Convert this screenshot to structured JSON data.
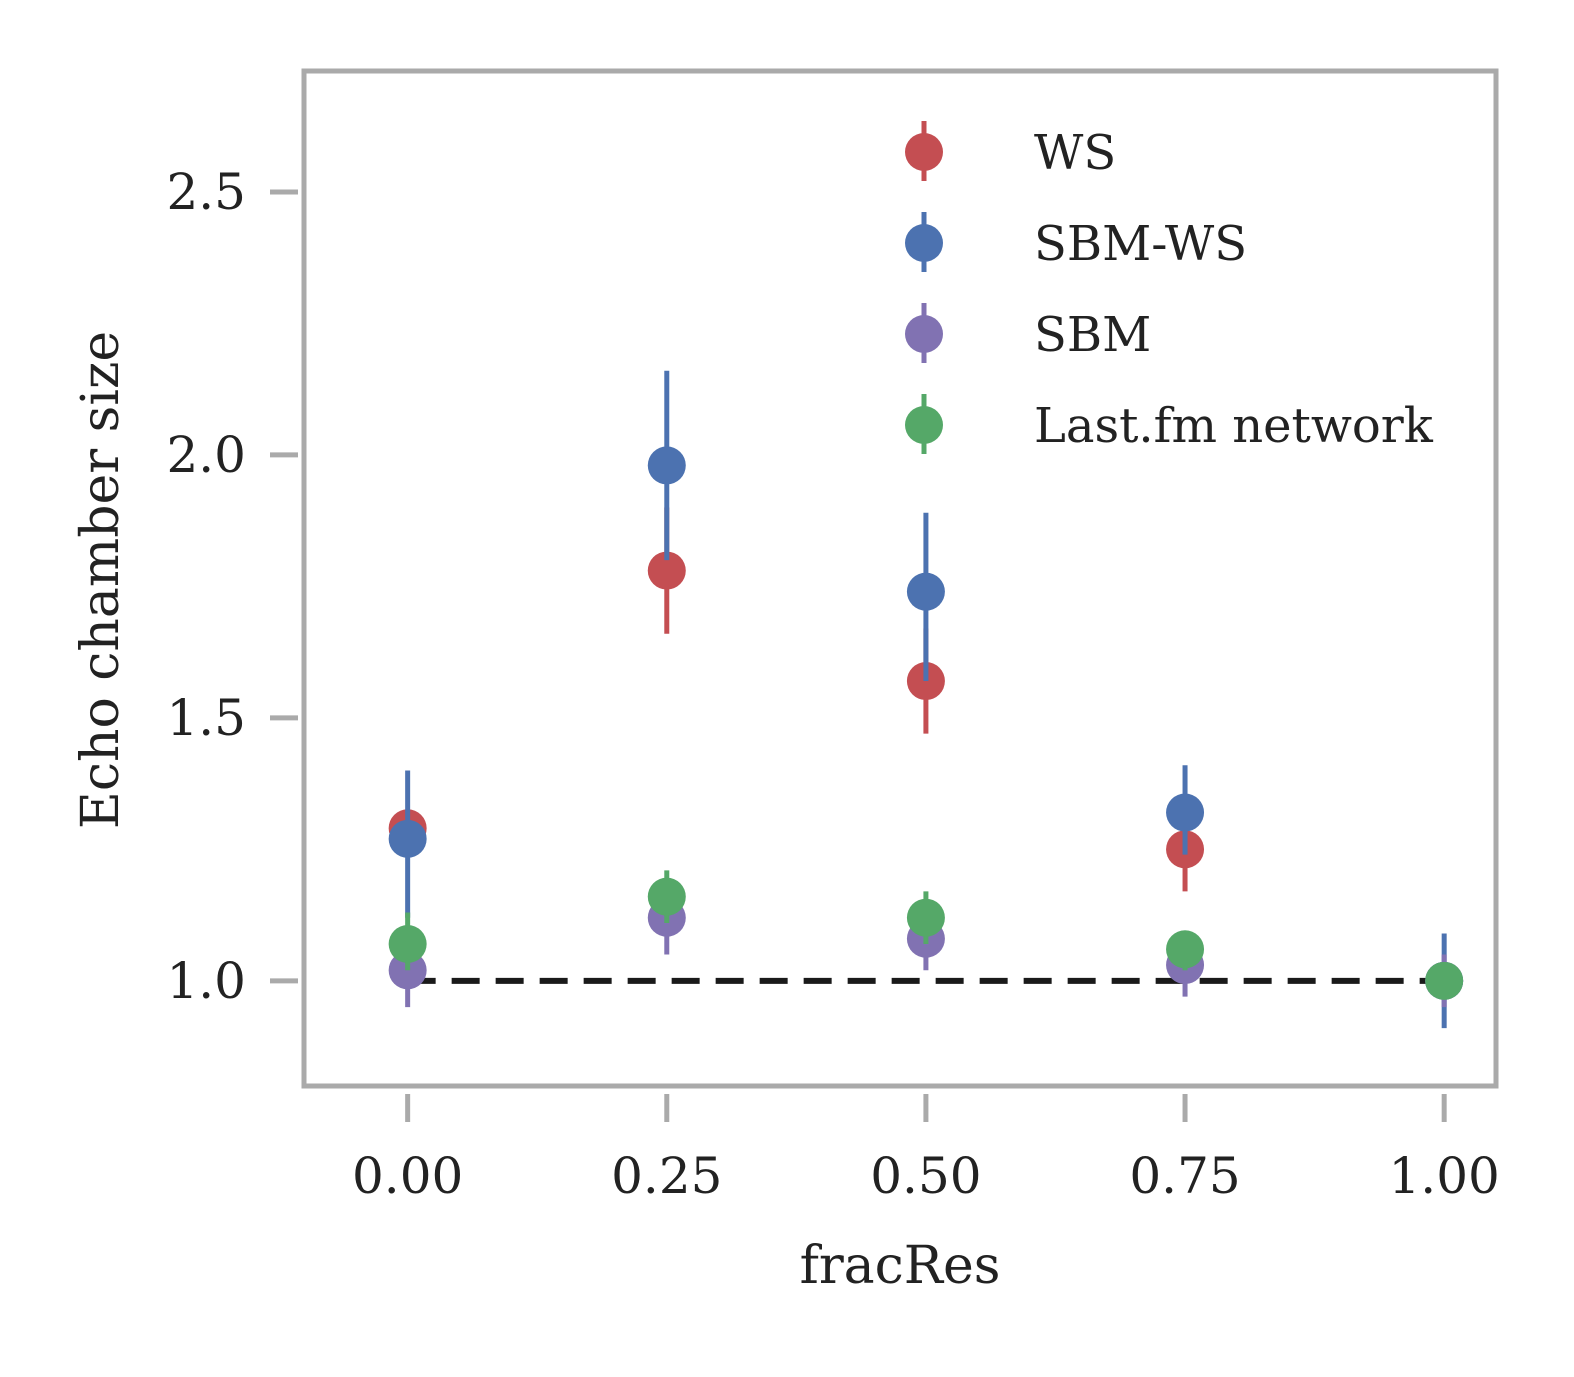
{
  "chart_data": {
    "type": "scatter",
    "title": "",
    "xlabel": "fracRes",
    "ylabel": "Echo chamber size",
    "xlim": [
      -0.1,
      1.05
    ],
    "ylim": [
      0.8,
      2.73
    ],
    "xticks": [
      0.0,
      0.25,
      0.5,
      0.75,
      1.0
    ],
    "xtick_labels": [
      "0.00",
      "0.25",
      "0.50",
      "0.75",
      "1.00"
    ],
    "yticks": [
      1.0,
      1.5,
      2.0,
      2.5
    ],
    "ytick_labels": [
      "1.0",
      "1.5",
      "2.0",
      "2.5"
    ],
    "reference_line": {
      "y": 1.0,
      "style": "dashed",
      "color": "#1a1a1a"
    },
    "legend_position": "top-right",
    "grid": false,
    "series": [
      {
        "name": "WS",
        "color": "#c44e52",
        "points": [
          {
            "x": 0.0,
            "y": 1.29,
            "err": [
              1.29,
              1.29
            ]
          },
          {
            "x": 0.25,
            "y": 1.78,
            "err": [
              1.66,
              1.9
            ]
          },
          {
            "x": 0.5,
            "y": 1.57,
            "err": [
              1.47,
              1.67
            ]
          },
          {
            "x": 0.75,
            "y": 1.25,
            "err": [
              1.17,
              1.33
            ]
          }
        ]
      },
      {
        "name": "SBM-WS",
        "color": "#4c72b0",
        "points": [
          {
            "x": 0.0,
            "y": 1.27,
            "err": [
              1.12,
              1.4
            ]
          },
          {
            "x": 0.25,
            "y": 1.98,
            "err": [
              1.8,
              2.16
            ]
          },
          {
            "x": 0.5,
            "y": 1.74,
            "err": [
              1.57,
              1.89
            ]
          },
          {
            "x": 0.75,
            "y": 1.32,
            "err": [
              1.24,
              1.41
            ]
          },
          {
            "x": 1.0,
            "y": 1.0,
            "err": [
              0.91,
              1.09
            ]
          }
        ]
      },
      {
        "name": "SBM",
        "color": "#8172b2",
        "points": [
          {
            "x": 0.0,
            "y": 1.02,
            "err": [
              0.95,
              1.09
            ]
          },
          {
            "x": 0.25,
            "y": 1.12,
            "err": [
              1.05,
              1.18
            ]
          },
          {
            "x": 0.5,
            "y": 1.08,
            "err": [
              1.02,
              1.14
            ]
          },
          {
            "x": 0.75,
            "y": 1.03,
            "err": [
              0.97,
              1.08
            ]
          },
          {
            "x": 1.0,
            "y": 1.0,
            "err": [
              0.95,
              1.05
            ]
          }
        ]
      },
      {
        "name": "Last.fm network",
        "color": "#55a868",
        "points": [
          {
            "x": 0.0,
            "y": 1.07,
            "err": [
              1.02,
              1.13
            ]
          },
          {
            "x": 0.25,
            "y": 1.16,
            "err": [
              1.11,
              1.21
            ]
          },
          {
            "x": 0.5,
            "y": 1.12,
            "err": [
              1.07,
              1.17
            ]
          },
          {
            "x": 0.75,
            "y": 1.06,
            "err": [
              1.02,
              1.09
            ]
          },
          {
            "x": 1.0,
            "y": 1.0,
            "err": [
              0.97,
              1.03
            ]
          }
        ]
      }
    ]
  }
}
